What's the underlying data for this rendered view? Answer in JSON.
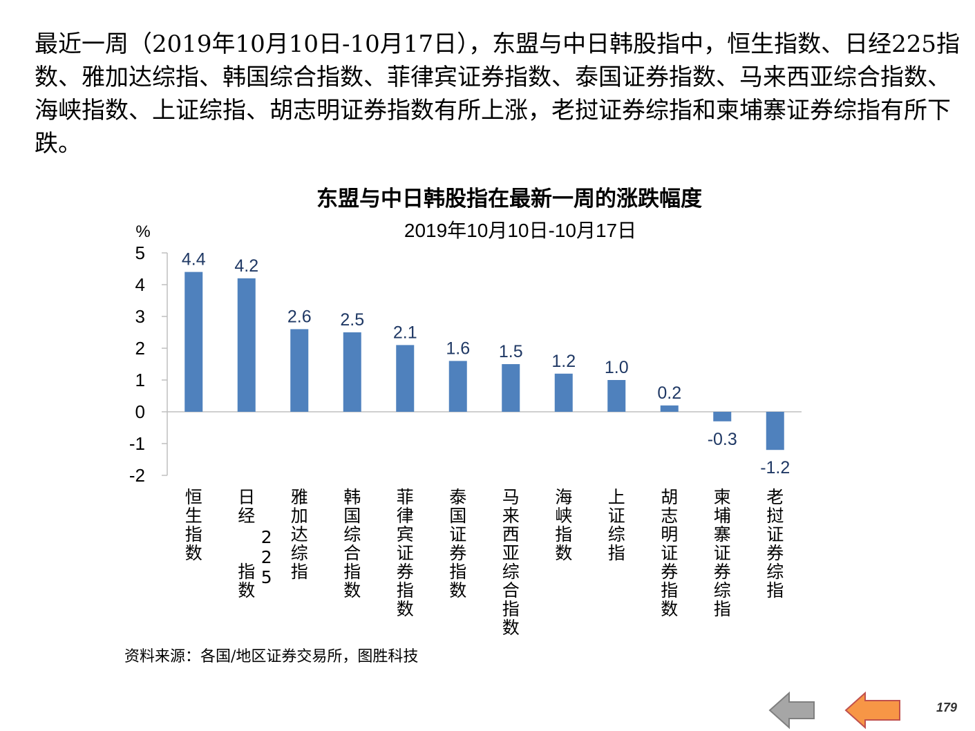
{
  "intro_text": "最近一周（2019年10月10日-10月17日），东盟与中日韩股指中，恒生指数、日经225指数、雅加达综指、韩国综合指数、菲律宾证券指数、泰国证券指数、马来西亚综合指数、海峡指数、上证综指、胡志明证券指数有所上涨，老挝证券综指和柬埔寨证券综指有所下跌。",
  "source_note": "资料来源：各国/地区证券交易所，图胜科技",
  "page_number": "179",
  "nav": {
    "prev_icon": "arrow-left-gray-icon",
    "next_icon": "arrow-left-orange-icon"
  },
  "colors": {
    "bar": "#4F81BD",
    "label": "#1F3864",
    "axis": "#BFBFBF",
    "prev": "#A6A6A6",
    "next": "#F79646"
  },
  "chart_data": {
    "type": "bar",
    "title": "东盟与中日韩股指在最新一周的涨跌幅度",
    "subtitle": "2019年10月10日-10月17日",
    "ylabel": "%",
    "ylim": [
      -2,
      5
    ],
    "yticks": [
      5,
      4,
      3,
      2,
      1,
      0,
      -1,
      -2
    ],
    "grid": false,
    "categories": [
      "恒生指数",
      "日经225指数",
      "雅加达综指",
      "韩国综合指数",
      "菲律宾证券指数",
      "泰国证券指数",
      "马来西亚综合指数",
      "海峡指数",
      "上证综指",
      "胡志明证券指数",
      "柬埔寨证券综指",
      "老挝证券综指"
    ],
    "values": [
      4.4,
      4.2,
      2.6,
      2.5,
      2.1,
      1.6,
      1.5,
      1.2,
      1.0,
      0.2,
      -0.3,
      -1.2
    ],
    "data_labels": [
      "4.4",
      "4.2",
      "2.6",
      "2.5",
      "2.1",
      "1.6",
      "1.5",
      "1.2",
      "1.0",
      "0.2",
      "-0.3",
      "-1.2"
    ]
  }
}
